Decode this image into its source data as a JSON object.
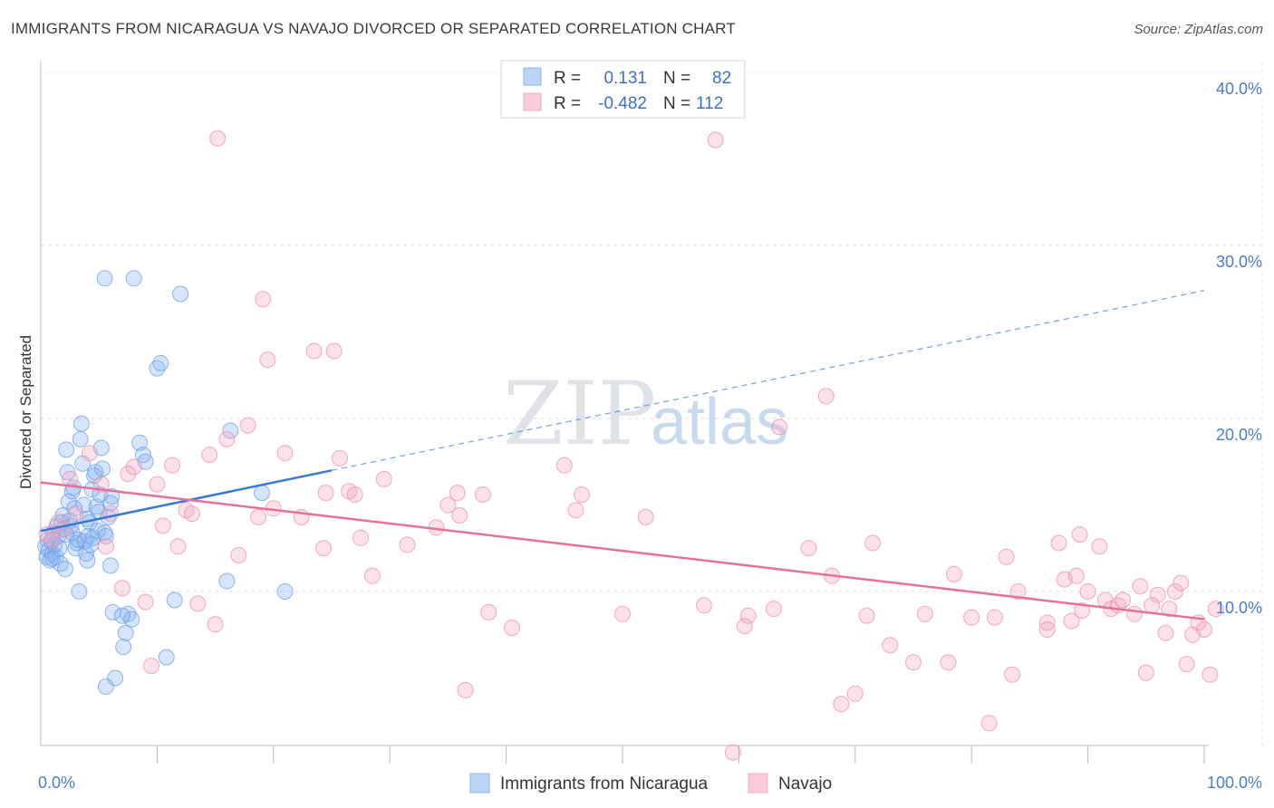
{
  "header": {
    "title": "IMMIGRANTS FROM NICARAGUA VS NAVAJO DIVORCED OR SEPARATED CORRELATION CHART",
    "source": "Source: ZipAtlas.com"
  },
  "watermark": {
    "zip": "ZIP",
    "atlas": "atlas"
  },
  "legend": {
    "rows": [
      {
        "r_label": "R =",
        "r_value": "0.131",
        "n_label": "N =",
        "n_value": "82",
        "color": "#8ab4f0"
      },
      {
        "r_label": "R =",
        "r_value": "-0.482",
        "n_label": "N =",
        "n_value": "112",
        "color": "#f4a9c0"
      }
    ]
  },
  "chart_data": {
    "type": "scatter",
    "title": "IMMIGRANTS FROM NICARAGUA VS NAVAJO DIVORCED OR SEPARATED CORRELATION CHART",
    "xlabel": "",
    "ylabel": "Divorced or Separated",
    "xlim": [
      0,
      100
    ],
    "ylim": [
      0,
      42
    ],
    "x_tick_labels": [
      "0.0%",
      "100.0%"
    ],
    "y_ticks": [
      10,
      20,
      30,
      40
    ],
    "y_tick_labels": [
      "10.0%",
      "20.0%",
      "30.0%",
      "40.0%"
    ],
    "grid": true,
    "legend_placement": "top-center",
    "series": [
      {
        "name": "Immigrants from Nicaragua",
        "color": "#8ab4f0",
        "stroke": "#6f9fe6",
        "trend": {
          "x": [
            0,
            25
          ],
          "y": [
            13.5,
            17.0
          ],
          "extended_to": [
            100,
            27.4
          ]
        },
        "points": [
          [
            0.4,
            12.6
          ],
          [
            0.5,
            12.0
          ],
          [
            0.6,
            13.0
          ],
          [
            0.7,
            12.4
          ],
          [
            0.8,
            11.8
          ],
          [
            0.9,
            12.9
          ],
          [
            1.0,
            12.2
          ],
          [
            1.1,
            13.4
          ],
          [
            1.2,
            12.7
          ],
          [
            1.3,
            12.0
          ],
          [
            1.4,
            13.8
          ],
          [
            1.5,
            13.2
          ],
          [
            1.6,
            12.5
          ],
          [
            1.7,
            11.6
          ],
          [
            1.8,
            14.0
          ],
          [
            1.9,
            14.4
          ],
          [
            2.0,
            13.6
          ],
          [
            2.1,
            11.3
          ],
          [
            2.2,
            18.2
          ],
          [
            2.3,
            16.9
          ],
          [
            2.4,
            15.2
          ],
          [
            2.5,
            14.1
          ],
          [
            2.6,
            13.8
          ],
          [
            2.7,
            15.8
          ],
          [
            2.8,
            16.0
          ],
          [
            2.9,
            14.8
          ],
          [
            3.0,
            12.5
          ],
          [
            3.1,
            12.8
          ],
          [
            3.2,
            13.0
          ],
          [
            3.3,
            10.0
          ],
          [
            3.4,
            18.8
          ],
          [
            3.5,
            19.7
          ],
          [
            3.6,
            17.4
          ],
          [
            3.7,
            15.0
          ],
          [
            3.8,
            12.9
          ],
          [
            3.9,
            12.2
          ],
          [
            4.0,
            14.2
          ],
          [
            4.1,
            13.2
          ],
          [
            4.2,
            14.0
          ],
          [
            4.3,
            12.7
          ],
          [
            4.4,
            15.9
          ],
          [
            4.5,
            13.1
          ],
          [
            4.6,
            16.7
          ],
          [
            4.7,
            16.9
          ],
          [
            4.8,
            14.9
          ],
          [
            4.9,
            13.5
          ],
          [
            5.0,
            14.6
          ],
          [
            5.1,
            15.6
          ],
          [
            5.2,
            18.3
          ],
          [
            5.3,
            17.1
          ],
          [
            5.5,
            13.4
          ],
          [
            5.6,
            13.2
          ],
          [
            5.8,
            14.3
          ],
          [
            6.0,
            11.5
          ],
          [
            6.0,
            15.1
          ],
          [
            6.1,
            15.5
          ],
          [
            5.5,
            28.1
          ],
          [
            8.0,
            28.1
          ],
          [
            12.0,
            27.2
          ],
          [
            10.0,
            22.9
          ],
          [
            10.3,
            23.2
          ],
          [
            8.5,
            18.6
          ],
          [
            8.8,
            17.9
          ],
          [
            9.0,
            17.5
          ],
          [
            11.5,
            9.5
          ],
          [
            6.2,
            8.8
          ],
          [
            7.5,
            8.7
          ],
          [
            7.8,
            8.4
          ],
          [
            7.0,
            8.6
          ],
          [
            7.3,
            7.6
          ],
          [
            7.1,
            6.8
          ],
          [
            6.4,
            5.0
          ],
          [
            5.6,
            4.5
          ],
          [
            10.8,
            6.2
          ],
          [
            16.0,
            10.6
          ],
          [
            19.0,
            15.7
          ],
          [
            21.0,
            10.0
          ],
          [
            16.3,
            19.3
          ],
          [
            4.0,
            11.8
          ],
          [
            2.2,
            13.3
          ],
          [
            1.0,
            11.9
          ],
          [
            2.7,
            13.4
          ]
        ]
      },
      {
        "name": "Navajo",
        "color": "#f4a9c0",
        "stroke": "#ee8fae",
        "trend": {
          "x": [
            0,
            100
          ],
          "y": [
            16.3,
            8.4
          ]
        },
        "points": [
          [
            0.5,
            13.3
          ],
          [
            1.0,
            13.0
          ],
          [
            1.5,
            14.0
          ],
          [
            2.0,
            13.6
          ],
          [
            2.5,
            16.5
          ],
          [
            3.0,
            14.5
          ],
          [
            4.2,
            18.0
          ],
          [
            5.2,
            16.2
          ],
          [
            5.6,
            12.6
          ],
          [
            6.0,
            14.5
          ],
          [
            7.0,
            10.2
          ],
          [
            7.5,
            16.8
          ],
          [
            8.0,
            17.2
          ],
          [
            9.0,
            9.4
          ],
          [
            9.5,
            5.7
          ],
          [
            10.0,
            16.2
          ],
          [
            10.5,
            13.8
          ],
          [
            11.3,
            17.3
          ],
          [
            11.8,
            12.6
          ],
          [
            12.5,
            14.7
          ],
          [
            13.0,
            14.5
          ],
          [
            13.5,
            9.3
          ],
          [
            14.5,
            17.9
          ],
          [
            15.0,
            8.1
          ],
          [
            15.2,
            36.2
          ],
          [
            16.0,
            18.8
          ],
          [
            17.0,
            12.1
          ],
          [
            17.8,
            19.6
          ],
          [
            18.7,
            14.3
          ],
          [
            19.1,
            26.9
          ],
          [
            19.5,
            23.4
          ],
          [
            20.0,
            14.8
          ],
          [
            21.0,
            18.0
          ],
          [
            22.4,
            14.3
          ],
          [
            23.5,
            23.9
          ],
          [
            24.3,
            12.5
          ],
          [
            24.5,
            15.7
          ],
          [
            25.2,
            23.9
          ],
          [
            25.7,
            17.7
          ],
          [
            26.5,
            15.8
          ],
          [
            27.0,
            15.6
          ],
          [
            27.5,
            13.1
          ],
          [
            28.5,
            10.9
          ],
          [
            29.5,
            16.5
          ],
          [
            31.5,
            12.7
          ],
          [
            34.0,
            13.7
          ],
          [
            35.0,
            15.0
          ],
          [
            35.8,
            15.7
          ],
          [
            36.0,
            14.4
          ],
          [
            36.5,
            4.3
          ],
          [
            38.0,
            15.6
          ],
          [
            38.5,
            8.8
          ],
          [
            40.5,
            7.9
          ],
          [
            45.0,
            17.3
          ],
          [
            46.0,
            14.7
          ],
          [
            46.5,
            15.6
          ],
          [
            50.0,
            8.7
          ],
          [
            52.0,
            14.3
          ],
          [
            57.0,
            9.2
          ],
          [
            58.0,
            36.1
          ],
          [
            59.5,
            0.7
          ],
          [
            60.5,
            8.0
          ],
          [
            60.8,
            8.6
          ],
          [
            63.0,
            9.0
          ],
          [
            63.5,
            19.5
          ],
          [
            66.0,
            12.5
          ],
          [
            67.5,
            21.3
          ],
          [
            68.0,
            10.9
          ],
          [
            68.8,
            3.5
          ],
          [
            70.0,
            4.1
          ],
          [
            71.0,
            8.6
          ],
          [
            71.5,
            12.8
          ],
          [
            73.0,
            6.9
          ],
          [
            75.0,
            5.9
          ],
          [
            76.0,
            8.7
          ],
          [
            78.0,
            5.9
          ],
          [
            78.5,
            11.0
          ],
          [
            80.0,
            8.5
          ],
          [
            81.5,
            2.4
          ],
          [
            82.0,
            8.5
          ],
          [
            83.0,
            12.0
          ],
          [
            83.5,
            5.2
          ],
          [
            84.0,
            10.0
          ],
          [
            86.5,
            8.2
          ],
          [
            87.5,
            12.8
          ],
          [
            88.0,
            10.7
          ],
          [
            88.6,
            8.3
          ],
          [
            89.0,
            10.9
          ],
          [
            89.3,
            13.3
          ],
          [
            90.0,
            10.0
          ],
          [
            91.0,
            12.6
          ],
          [
            91.5,
            9.5
          ],
          [
            92.0,
            9.0
          ],
          [
            92.6,
            9.2
          ],
          [
            93.0,
            9.5
          ],
          [
            94.5,
            10.3
          ],
          [
            95.0,
            5.3
          ],
          [
            95.5,
            9.2
          ],
          [
            96.0,
            9.8
          ],
          [
            96.7,
            7.6
          ],
          [
            97.0,
            9.0
          ],
          [
            97.5,
            10.0
          ],
          [
            98.0,
            10.5
          ],
          [
            98.5,
            5.8
          ],
          [
            99.0,
            7.5
          ],
          [
            99.5,
            8.2
          ],
          [
            100.0,
            7.8
          ],
          [
            100.5,
            5.2
          ],
          [
            101.0,
            9.0
          ],
          [
            89.5,
            8.9
          ],
          [
            94.0,
            8.7
          ],
          [
            86.5,
            7.8
          ]
        ]
      }
    ]
  },
  "bottom_legend": [
    {
      "label": "Immigrants from Nicaragua",
      "color": "#8ab4f0"
    },
    {
      "label": "Navajo",
      "color": "#f4a9c0"
    }
  ]
}
